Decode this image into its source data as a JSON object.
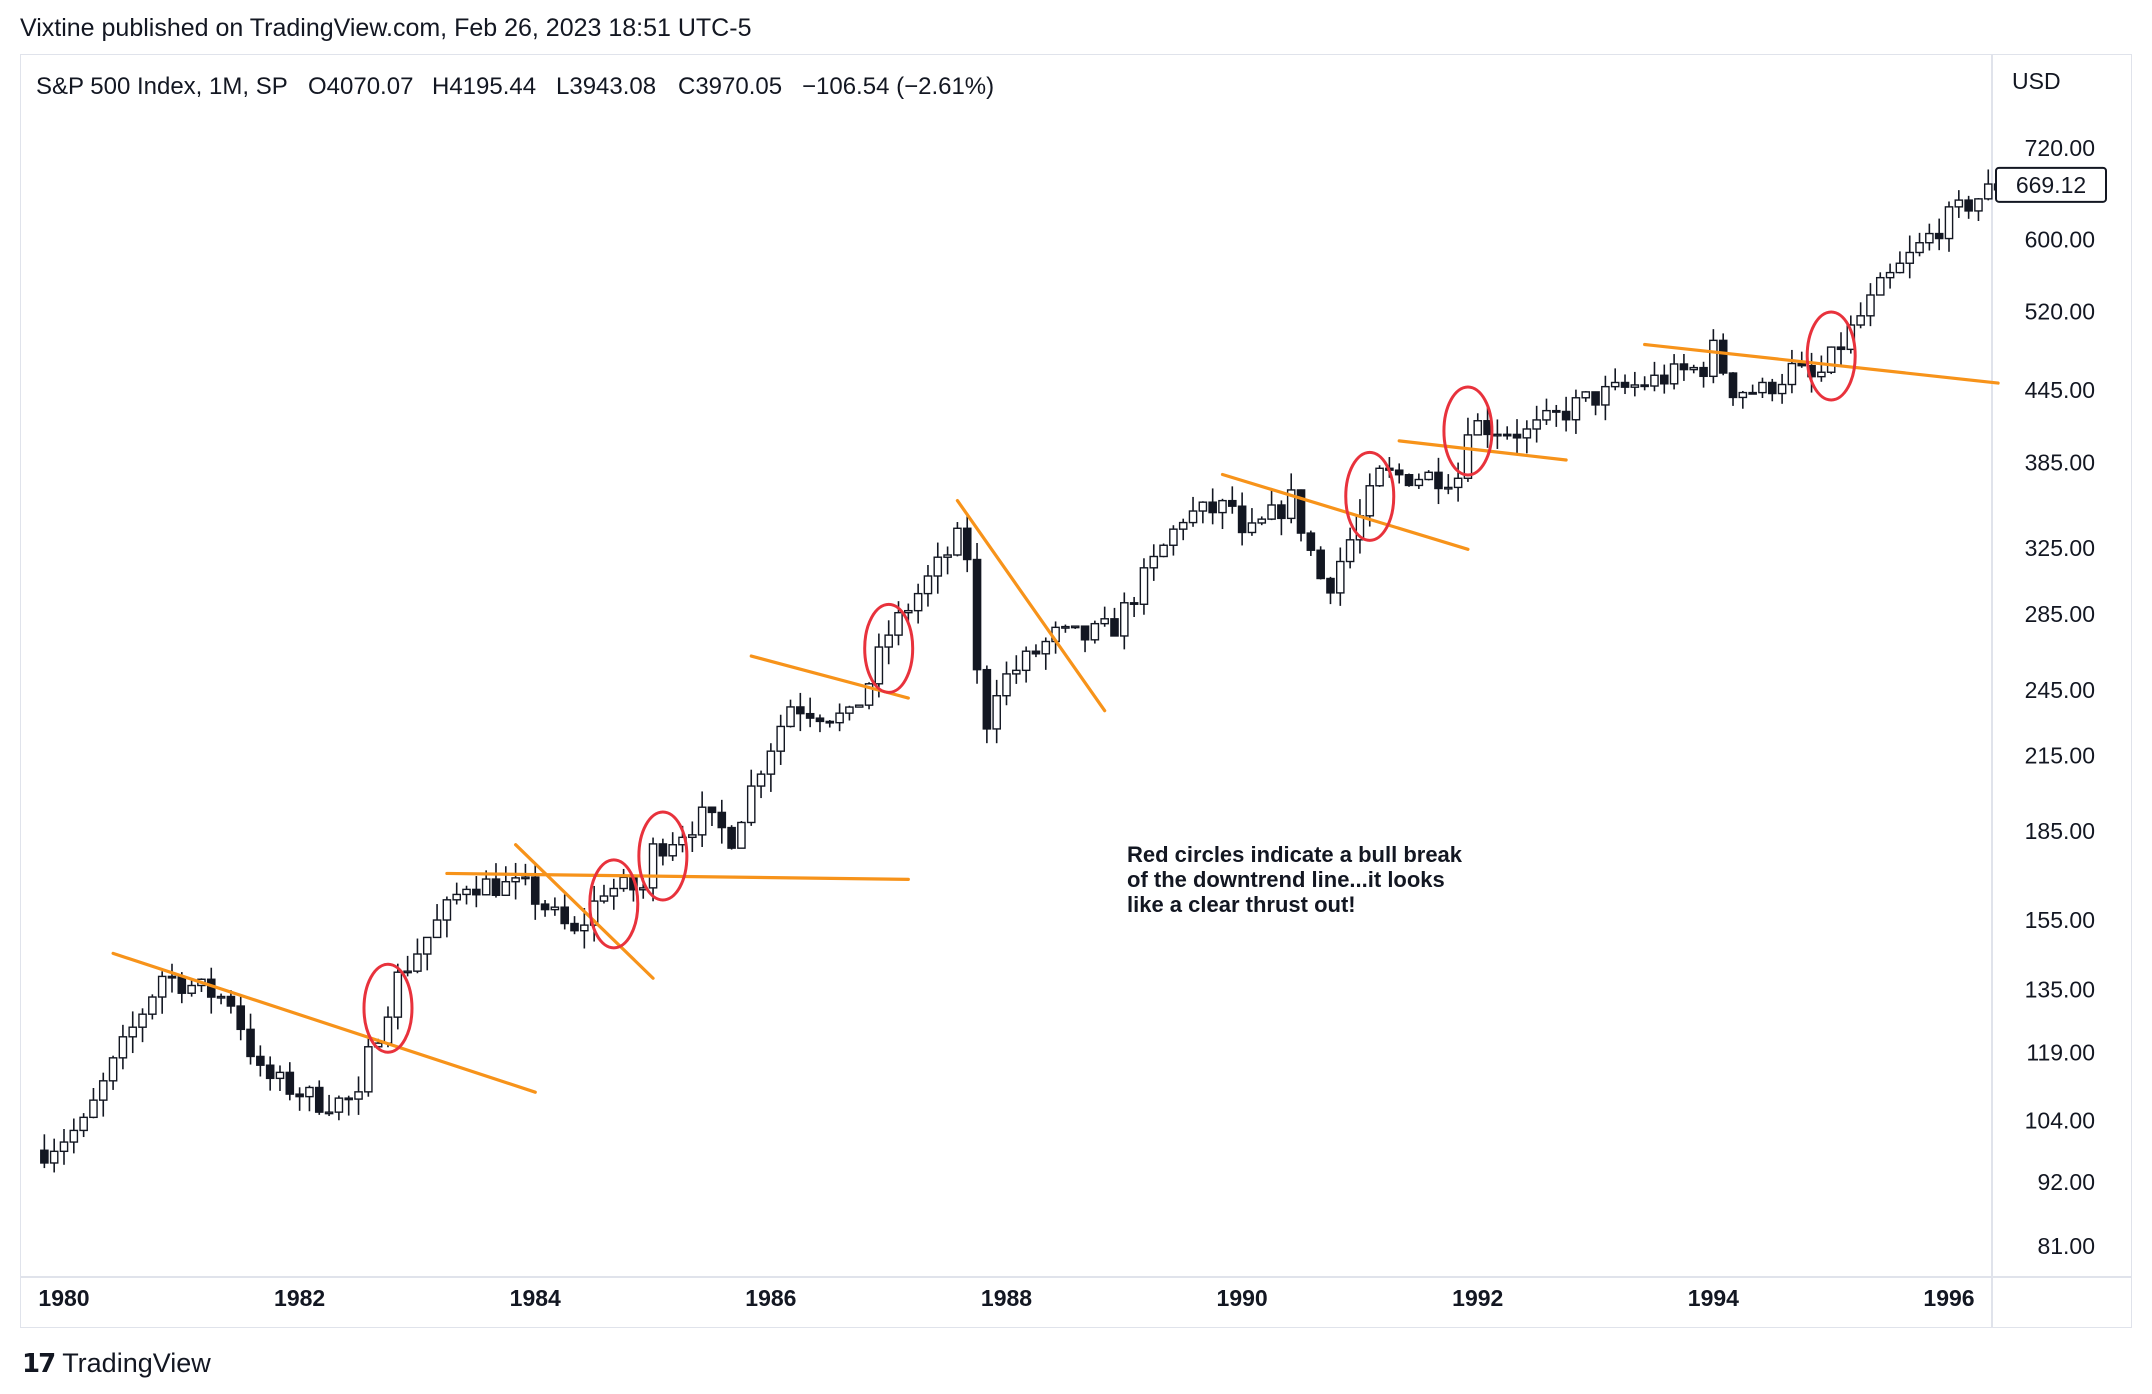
{
  "header": {
    "publisher_line": "Vixtine published on TradingView.com, Feb 26, 2023 18:51 UTC-5"
  },
  "legend": {
    "symbol": "S&P 500 Index, 1M, SP",
    "open": "O4070.07",
    "high": "H4195.44",
    "low": "L3943.08",
    "close": "C3970.05",
    "change": "−106.54 (−2.61%)"
  },
  "price_axis": {
    "currency": "USD",
    "ticks": [
      "720.00",
      "600.00",
      "520.00",
      "445.00",
      "385.00",
      "325.00",
      "285.00",
      "245.00",
      "215.00",
      "185.00",
      "155.00",
      "135.00",
      "119.00",
      "104.00",
      "92.00",
      "81.00"
    ],
    "last_price_label": "669.12"
  },
  "time_axis": {
    "ticks": [
      "1980",
      "1982",
      "1984",
      "1986",
      "1988",
      "1990",
      "1992",
      "1994",
      "1996"
    ]
  },
  "annotation": {
    "lines": [
      "Red circles indicate a bull break",
      "of the downtrend line...it looks",
      "like a clear thrust out!"
    ]
  },
  "footer": {
    "brand": "TradingView",
    "logo_mark": "17"
  },
  "colors": {
    "trendline": "#f7931a",
    "circle": "#e8323c",
    "candle": "#131722",
    "grid_border": "#e0e3eb"
  },
  "chart_data": {
    "type": "candlestick",
    "title": "S&P 500 Index, 1M, SP",
    "y_scale": "log",
    "ylim": [
      75,
      790
    ],
    "x_range": [
      "1979-12",
      "1996-07"
    ],
    "grid": false,
    "anchors": [
      [
        "1979-11",
        98
      ],
      [
        "1980-03",
        103
      ],
      [
        "1980-06",
        116
      ],
      [
        "1980-11",
        139
      ],
      [
        "1981-06",
        132
      ],
      [
        "1981-09",
        114
      ],
      [
        "1982-03",
        108
      ],
      [
        "1982-07",
        108
      ],
      [
        "1982-08",
        118
      ],
      [
        "1982-11",
        138
      ],
      [
        "1983-06",
        167
      ],
      [
        "1983-12",
        165
      ],
      [
        "1984-02",
        159
      ],
      [
        "1984-05",
        150
      ],
      [
        "1984-08",
        165
      ],
      [
        "1984-12",
        165
      ],
      [
        "1985-01",
        178
      ],
      [
        "1985-06",
        190
      ],
      [
        "1985-09",
        183
      ],
      [
        "1985-12",
        211
      ],
      [
        "1986-03",
        238
      ],
      [
        "1986-09",
        231
      ],
      [
        "1986-11",
        249
      ],
      [
        "1987-01",
        274
      ],
      [
        "1987-08",
        330
      ],
      [
        "1987-09",
        320
      ],
      [
        "1987-10",
        252
      ],
      [
        "1987-11",
        230
      ],
      [
        "1987-12",
        247
      ],
      [
        "1988-06",
        273
      ],
      [
        "1988-09",
        272
      ],
      [
        "1988-12",
        278
      ],
      [
        "1989-07",
        346
      ],
      [
        "1989-12",
        353
      ],
      [
        "1990-01",
        329
      ],
      [
        "1990-06",
        358
      ],
      [
        "1990-09",
        306
      ],
      [
        "1990-10",
        304
      ],
      [
        "1990-12",
        330
      ],
      [
        "1991-03",
        375
      ],
      [
        "1991-11",
        375
      ],
      [
        "1991-12",
        417
      ],
      [
        "1992-06",
        408
      ],
      [
        "1992-12",
        436
      ],
      [
        "1993-06",
        451
      ],
      [
        "1993-12",
        466
      ],
      [
        "1994-01",
        482
      ],
      [
        "1994-03",
        446
      ],
      [
        "1994-06",
        444
      ],
      [
        "1994-09",
        463
      ],
      [
        "1994-11",
        454
      ],
      [
        "1994-12",
        459
      ],
      [
        "1995-02",
        487
      ],
      [
        "1995-06",
        544
      ],
      [
        "1995-12",
        616
      ],
      [
        "1996-03",
        645
      ],
      [
        "1996-06",
        669
      ]
    ],
    "trendlines": [
      [
        [
          "1980-06",
          145
        ],
        [
          "1984-01",
          110
        ]
      ],
      [
        [
          "1983-04",
          170
        ],
        [
          "1987-03",
          168
        ]
      ],
      [
        [
          "1983-11",
          180
        ],
        [
          "1985-01",
          138
        ]
      ],
      [
        [
          "1985-11",
          262
        ],
        [
          "1987-03",
          241
        ]
      ],
      [
        [
          "1987-08",
          357
        ],
        [
          "1988-11",
          235
        ]
      ],
      [
        [
          "1989-11",
          376
        ],
        [
          "1991-12",
          324
        ]
      ],
      [
        [
          "1991-05",
          402
        ],
        [
          "1992-10",
          387
        ]
      ],
      [
        [
          "1993-06",
          487
        ],
        [
          "1996-06",
          451
        ]
      ]
    ],
    "circles": [
      [
        "1982-10",
        130
      ],
      [
        "1984-09",
        160
      ],
      [
        "1985-02",
        176
      ],
      [
        "1987-01",
        266
      ],
      [
        "1991-02",
        360
      ],
      [
        "1991-12",
        410
      ],
      [
        "1995-01",
        476
      ]
    ]
  }
}
